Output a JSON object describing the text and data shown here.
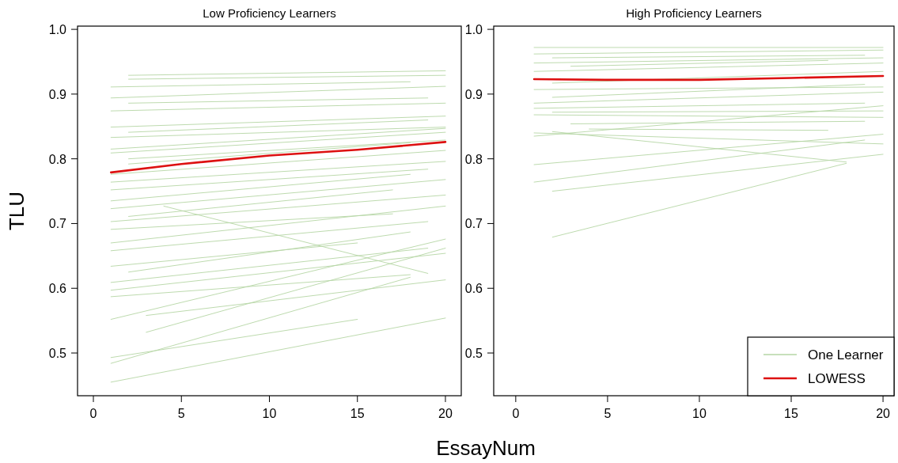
{
  "chart_data": [
    {
      "type": "line",
      "title": "Low Proficiency Learners",
      "xlabel": "EssayNum",
      "ylabel": "TLU",
      "xlim": [
        -0.9,
        20.9
      ],
      "ylim": [
        0.434,
        1.005
      ],
      "xticks": [
        0,
        5,
        10,
        15,
        20
      ],
      "yticks": [
        0.5,
        0.6,
        0.7,
        0.8,
        0.9,
        {
          "value": 1,
          "label": "1.0"
        }
      ],
      "grid": false,
      "legend": false,
      "series": [
        {
          "color": "#b5d6a5",
          "x": [
            2,
            20
          ],
          "values": [
            0.929,
            0.936
          ]
        },
        {
          "color": "#b5d6a5",
          "x": [
            2,
            20
          ],
          "values": [
            0.923,
            0.929
          ]
        },
        {
          "color": "#b5d6a5",
          "x": [
            1,
            18
          ],
          "values": [
            0.911,
            0.919
          ]
        },
        {
          "color": "#b5d6a5",
          "x": [
            1,
            20
          ],
          "values": [
            0.894,
            0.912
          ]
        },
        {
          "color": "#b5d6a5",
          "x": [
            2,
            19
          ],
          "values": [
            0.886,
            0.894
          ]
        },
        {
          "color": "#b5d6a5",
          "x": [
            1,
            20
          ],
          "values": [
            0.874,
            0.886
          ]
        },
        {
          "color": "#b5d6a5",
          "x": [
            1,
            20
          ],
          "values": [
            0.849,
            0.866
          ]
        },
        {
          "color": "#b5d6a5",
          "x": [
            2,
            19
          ],
          "values": [
            0.841,
            0.86
          ]
        },
        {
          "color": "#b5d6a5",
          "x": [
            1,
            20
          ],
          "values": [
            0.833,
            0.849
          ]
        },
        {
          "color": "#b5d6a5",
          "x": [
            1,
            20
          ],
          "values": [
            0.815,
            0.847
          ]
        },
        {
          "color": "#b5d6a5",
          "x": [
            1,
            20
          ],
          "values": [
            0.809,
            0.841
          ]
        },
        {
          "color": "#b5d6a5",
          "x": [
            2,
            20
          ],
          "values": [
            0.8,
            0.829
          ]
        },
        {
          "color": "#b5d6a5",
          "x": [
            2,
            18
          ],
          "values": [
            0.792,
            0.825
          ]
        },
        {
          "color": "#b5d6a5",
          "x": [
            1,
            20
          ],
          "values": [
            0.776,
            0.813
          ]
        },
        {
          "color": "#b5d6a5",
          "x": [
            1,
            20
          ],
          "values": [
            0.764,
            0.796
          ]
        },
        {
          "color": "#b5d6a5",
          "x": [
            1,
            19
          ],
          "values": [
            0.752,
            0.784
          ]
        },
        {
          "color": "#b5d6a5",
          "x": [
            1,
            18
          ],
          "values": [
            0.735,
            0.776
          ]
        },
        {
          "color": "#b5d6a5",
          "x": [
            1,
            20
          ],
          "values": [
            0.723,
            0.768
          ]
        },
        {
          "color": "#b5d6a5",
          "x": [
            2,
            17
          ],
          "values": [
            0.711,
            0.752
          ]
        },
        {
          "color": "#b5d6a5",
          "x": [
            1,
            20
          ],
          "values": [
            0.703,
            0.744
          ]
        },
        {
          "color": "#b5d6a5",
          "x": [
            1,
            17
          ],
          "values": [
            0.691,
            0.715
          ]
        },
        {
          "color": "#b5d6a5",
          "x": [
            1,
            20
          ],
          "values": [
            0.67,
            0.727
          ]
        },
        {
          "color": "#b5d6a5",
          "x": [
            1,
            19
          ],
          "values": [
            0.658,
            0.703
          ]
        },
        {
          "color": "#b5d6a5",
          "x": [
            4,
            19
          ],
          "values": [
            0.727,
            0.623
          ]
        },
        {
          "color": "#b5d6a5",
          "x": [
            2,
            18
          ],
          "values": [
            0.625,
            0.687
          ]
        },
        {
          "color": "#b5d6a5",
          "x": [
            1,
            15
          ],
          "values": [
            0.634,
            0.67
          ]
        },
        {
          "color": "#b5d6a5",
          "x": [
            1,
            19
          ],
          "values": [
            0.609,
            0.662
          ]
        },
        {
          "color": "#b5d6a5",
          "x": [
            1,
            20
          ],
          "values": [
            0.597,
            0.654
          ]
        },
        {
          "color": "#b5d6a5",
          "x": [
            1,
            18
          ],
          "values": [
            0.587,
            0.621
          ]
        },
        {
          "color": "#b5d6a5",
          "x": [
            1,
            20
          ],
          "values": [
            0.552,
            0.676
          ]
        },
        {
          "color": "#b5d6a5",
          "x": [
            3,
            20
          ],
          "values": [
            0.532,
            0.662
          ]
        },
        {
          "color": "#b5d6a5",
          "x": [
            3,
            20
          ],
          "values": [
            0.558,
            0.613
          ]
        },
        {
          "color": "#b5d6a5",
          "x": [
            1,
            15
          ],
          "values": [
            0.493,
            0.552
          ]
        },
        {
          "color": "#b5d6a5",
          "x": [
            1,
            18
          ],
          "values": [
            0.484,
            0.617
          ]
        },
        {
          "color": "#b5d6a5",
          "x": [
            1,
            20
          ],
          "values": [
            0.455,
            0.554
          ]
        },
        {
          "color": "#dd1111",
          "x": [
            1,
            5,
            10,
            15,
            20
          ],
          "values": [
            0.779,
            0.792,
            0.805,
            0.814,
            0.826
          ]
        }
      ]
    },
    {
      "type": "line",
      "title": "High Proficiency Learners",
      "xlim": [
        -1.2,
        20.6
      ],
      "ylim": [
        0.434,
        1.005
      ],
      "xticks": [
        0,
        5,
        10,
        15,
        20
      ],
      "yticks": [
        0.5,
        0.6,
        0.7,
        0.8,
        0.9,
        {
          "value": 1,
          "label": "1.0"
        }
      ],
      "grid": false,
      "legend": "bottom right",
      "series": [
        {
          "name": "One Learner",
          "color": "#b5d6a5",
          "x": [
            1,
            20
          ],
          "values": [
            0.972,
            0.972
          ]
        },
        {
          "color": "#b5d6a5",
          "x": [
            1,
            20
          ],
          "values": [
            0.962,
            0.968
          ]
        },
        {
          "color": "#b5d6a5",
          "x": [
            2,
            19
          ],
          "values": [
            0.956,
            0.96
          ]
        },
        {
          "color": "#b5d6a5",
          "x": [
            1,
            20
          ],
          "values": [
            0.948,
            0.956
          ]
        },
        {
          "color": "#b5d6a5",
          "x": [
            3,
            17
          ],
          "values": [
            0.943,
            0.952
          ]
        },
        {
          "color": "#b5d6a5",
          "x": [
            1,
            20
          ],
          "values": [
            0.935,
            0.948
          ]
        },
        {
          "color": "#b5d6a5",
          "x": [
            2,
            20
          ],
          "values": [
            0.917,
            0.935
          ]
        },
        {
          "color": "#b5d6a5",
          "x": [
            1,
            20
          ],
          "values": [
            0.907,
            0.911
          ]
        },
        {
          "color": "#b5d6a5",
          "x": [
            2,
            19
          ],
          "values": [
            0.895,
            0.915
          ]
        },
        {
          "color": "#b5d6a5",
          "x": [
            1,
            20
          ],
          "values": [
            0.886,
            0.903
          ]
        },
        {
          "color": "#b5d6a5",
          "x": [
            1,
            19
          ],
          "values": [
            0.878,
            0.886
          ]
        },
        {
          "color": "#b5d6a5",
          "x": [
            2,
            20
          ],
          "values": [
            0.872,
            0.874
          ]
        },
        {
          "color": "#b5d6a5",
          "x": [
            1,
            20
          ],
          "values": [
            0.868,
            0.864
          ]
        },
        {
          "color": "#b5d6a5",
          "x": [
            3,
            19
          ],
          "values": [
            0.854,
            0.858
          ]
        },
        {
          "color": "#b5d6a5",
          "x": [
            4,
            17
          ],
          "values": [
            0.846,
            0.844
          ]
        },
        {
          "color": "#b5d6a5",
          "x": [
            1,
            20
          ],
          "values": [
            0.835,
            0.882
          ]
        },
        {
          "color": "#b5d6a5",
          "x": [
            1,
            20
          ],
          "values": [
            0.84,
            0.823
          ]
        },
        {
          "color": "#b5d6a5",
          "x": [
            2,
            18
          ],
          "values": [
            0.842,
            0.795
          ]
        },
        {
          "color": "#b5d6a5",
          "x": [
            1,
            20
          ],
          "values": [
            0.791,
            0.838
          ]
        },
        {
          "color": "#b5d6a5",
          "x": [
            1,
            19
          ],
          "values": [
            0.764,
            0.829
          ]
        },
        {
          "color": "#b5d6a5",
          "x": [
            2,
            20
          ],
          "values": [
            0.75,
            0.807
          ]
        },
        {
          "color": "#b5d6a5",
          "x": [
            2,
            18
          ],
          "values": [
            0.679,
            0.793
          ]
        },
        {
          "name": "LOWESS",
          "color": "#dd1111",
          "x": [
            1,
            5,
            10,
            15,
            20
          ],
          "values": [
            0.923,
            0.922,
            0.922,
            0.925,
            0.928
          ]
        }
      ]
    }
  ]
}
